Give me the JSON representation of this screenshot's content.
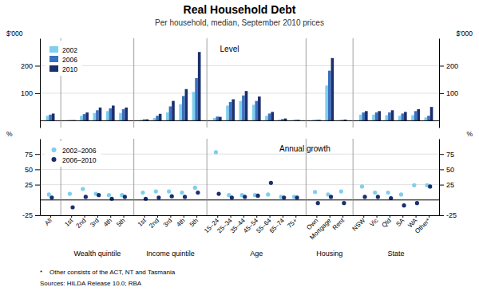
{
  "chart_data": [
    {
      "type": "bar",
      "title": "Real Household Debt",
      "subtitle": "Per household, median, September 2010 prices",
      "annotations": [
        "Level"
      ],
      "ylabel": "$'000",
      "y2label": "$'000",
      "ylim": [
        -25,
        300
      ],
      "yticks": [
        100,
        200
      ],
      "y2lim": [
        -25,
        300
      ],
      "y2ticks": [
        100,
        200
      ],
      "grid": true,
      "legend": "upper left",
      "series": [
        {
          "name": "2002",
          "color": "#7ecfed",
          "values": [
            18,
            2,
            18,
            28,
            35,
            28,
            3,
            10,
            30,
            60,
            105,
            10,
            55,
            72,
            58,
            18,
            4,
            2,
            3,
            128,
            2,
            22,
            22,
            20,
            18,
            20,
            12
          ]
        },
        {
          "name": "2006",
          "color": "#3a70c0",
          "values": [
            22,
            2,
            24,
            38,
            45,
            42,
            5,
            18,
            52,
            90,
            155,
            15,
            68,
            92,
            72,
            26,
            6,
            3,
            3,
            182,
            3,
            30,
            30,
            30,
            26,
            35,
            18
          ]
        },
        {
          "name": "2010",
          "color": "#1a2f6e",
          "values": [
            26,
            2,
            30,
            48,
            55,
            48,
            5,
            25,
            72,
            115,
            250,
            14,
            78,
            108,
            88,
            32,
            8,
            3,
            3,
            228,
            4,
            35,
            35,
            38,
            32,
            42,
            50
          ]
        }
      ]
    },
    {
      "type": "scatter",
      "annotations": [
        "Annual growth"
      ],
      "footnotes": [
        "*    Other consists of the ACT, NT and Tasmania",
        "Sources: HILDA Release 10.0; RBA"
      ],
      "ylabel": "%",
      "y2label": "%",
      "ylim": [
        -25,
        100
      ],
      "yticks": [
        -25,
        25,
        50,
        75
      ],
      "y2lim": [
        -25,
        100
      ],
      "y2ticks": [
        -25,
        25,
        50,
        75
      ],
      "grid": true,
      "legend": "upper left",
      "marker": "circle",
      "groups": [
        {
          "name": null,
          "categories": [
            "All"
          ]
        },
        {
          "name": "Wealth quintile",
          "categories": [
            "1st",
            "2nd",
            "3rd",
            "4th",
            "5th"
          ]
        },
        {
          "name": "Income quintile",
          "categories": [
            "1st",
            "2nd",
            "3rd",
            "4th",
            "5th"
          ]
        },
        {
          "name": "Age",
          "categories": [
            "15–24",
            "25–34",
            "35–44",
            "45–54",
            "55–64",
            "65–74",
            "75+"
          ]
        },
        {
          "name": "Housing",
          "categories": [
            "Own",
            "Mortgage",
            "Rent"
          ]
        },
        {
          "name": "State",
          "categories": [
            "NSW",
            "Vic",
            "Qld",
            "SA",
            "WA",
            "Other*"
          ]
        }
      ],
      "series": [
        {
          "name": "2002–2006",
          "color": "#7ecfed",
          "values": [
            9,
            10,
            18,
            10,
            8,
            8,
            12,
            14,
            14,
            12,
            20,
            78,
            8,
            8,
            8,
            9,
            5,
            5,
            13,
            9,
            14,
            22,
            12,
            12,
            9,
            24,
            24
          ]
        },
        {
          "name": "2006–2010",
          "color": "#1a2f6e",
          "values": [
            4,
            -12,
            5,
            8,
            2,
            5,
            2,
            4,
            6,
            5,
            12,
            10,
            4,
            5,
            7,
            28,
            4,
            4,
            -5,
            5,
            -5,
            5,
            5,
            3,
            -9,
            -5,
            22
          ]
        }
      ]
    }
  ]
}
